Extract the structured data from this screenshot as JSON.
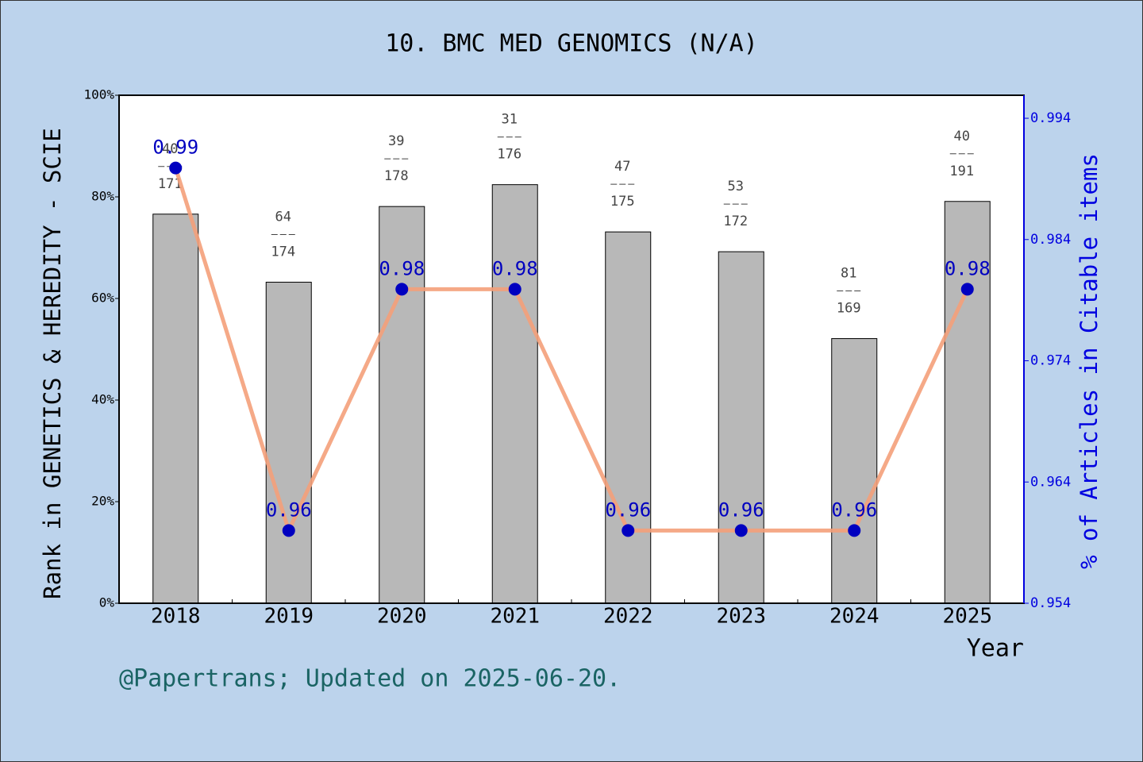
{
  "chart_data": {
    "type": "bar-line",
    "title": "10. BMC MED GENOMICS (N/A)",
    "x_label": "Year",
    "y_label": "Rank in GENETICS & HEREDITY - SCIE",
    "y2_label": "% of Articles in Citable items",
    "footer": "@Papertrans; Updated on 2025-06-20.",
    "categories": [
      "2018",
      "2019",
      "2020",
      "2021",
      "2022",
      "2023",
      "2024",
      "2025"
    ],
    "ylim": [
      0,
      100
    ],
    "yticks": [
      {
        "value": 0,
        "label": "0%"
      },
      {
        "value": 20,
        "label": "20%"
      },
      {
        "value": 40,
        "label": "40%"
      },
      {
        "value": 60,
        "label": "60%"
      },
      {
        "value": 80,
        "label": "80%"
      },
      {
        "value": 100,
        "label": "100%"
      }
    ],
    "y2lim": [
      0.954,
      0.9959
    ],
    "y2ticks": [
      0.954,
      0.964,
      0.974,
      0.984,
      0.994
    ],
    "series": [
      {
        "type": "bar",
        "color": "#b8b8b8",
        "values": [
          76.6,
          63.2,
          78.1,
          82.4,
          73.1,
          69.2,
          52.1,
          79.1
        ],
        "ranks": [
          40,
          64,
          39,
          31,
          47,
          53,
          81,
          40
        ],
        "totals": [
          171,
          174,
          178,
          176,
          175,
          172,
          169,
          191
        ]
      },
      {
        "type": "line",
        "axis": "y2",
        "color": "#f4a07a",
        "marker_color": "#0000c0",
        "values": [
          0.9899,
          0.96,
          0.9799,
          0.9799,
          0.96,
          0.96,
          0.96,
          0.9799
        ],
        "value_labels": [
          "0.99",
          "0.96",
          "0.98",
          "0.98",
          "0.96",
          "0.96",
          "0.96",
          "0.98"
        ]
      }
    ]
  }
}
